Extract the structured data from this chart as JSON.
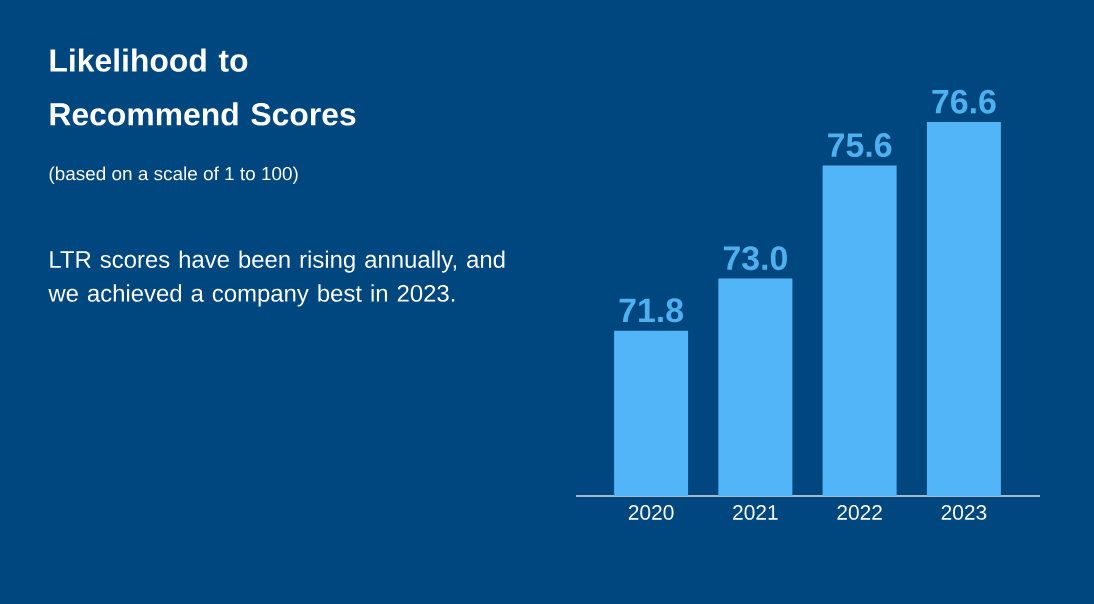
{
  "chart_data": {
    "type": "bar",
    "title": "Likelihood to Recommend Scores",
    "subtitle": "(based on a scale of 1 to 100)",
    "annotations": [
      "LTR scores have been rising annually, and we achieved a company best in 2023."
    ],
    "categories": [
      "2020",
      "2021",
      "2022",
      "2023"
    ],
    "values": [
      71.8,
      73.0,
      75.6,
      76.6
    ],
    "value_labels": [
      "71.8",
      "73.0",
      "75.6",
      "76.6"
    ],
    "color": "#52b5f7",
    "ylim": [
      68,
      76.6
    ],
    "tick_labels": "x"
  }
}
